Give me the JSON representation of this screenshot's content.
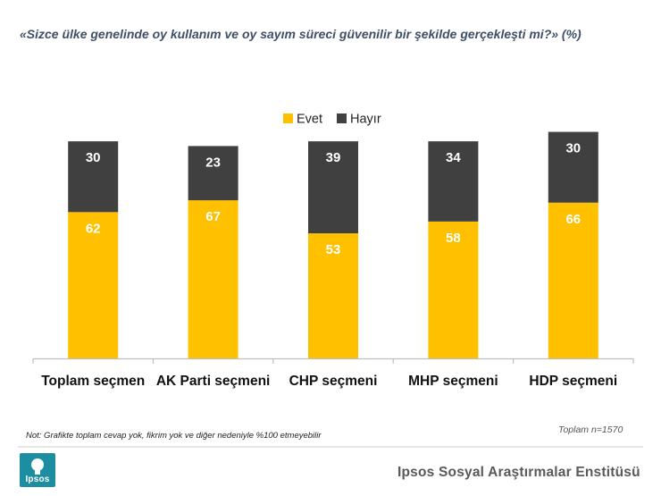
{
  "question": "«Sizce ülke genelinde oy kullanım ve oy sayım süreci güvenilir bir şekilde gerçekleşti mi?» (%)",
  "note": "Not: Grafikte toplam cevap yok, fikrim yok ve diğer nedeniyle %100 etmeyebilir",
  "sample": "Toplam n=1570",
  "footer": {
    "org": "Ipsos Sosyal Araştırmalar Enstitüsü",
    "logo_text": "Ipsos"
  },
  "colors": {
    "evet": "#ffc000",
    "hayir": "#404040"
  },
  "chart_data": {
    "type": "bar",
    "stacked": true,
    "categories": [
      "Toplam seçmen",
      "AK Parti seçmeni",
      "CHP seçmeni",
      "MHP seçmeni",
      "HDP seçmeni"
    ],
    "series": [
      {
        "name": "Evet",
        "values": [
          62,
          67,
          53,
          58,
          66
        ]
      },
      {
        "name": "Hayır",
        "values": [
          30,
          23,
          39,
          34,
          30
        ]
      }
    ],
    "legend": "top-center",
    "ylim": [
      0,
      100
    ],
    "grid": false
  }
}
